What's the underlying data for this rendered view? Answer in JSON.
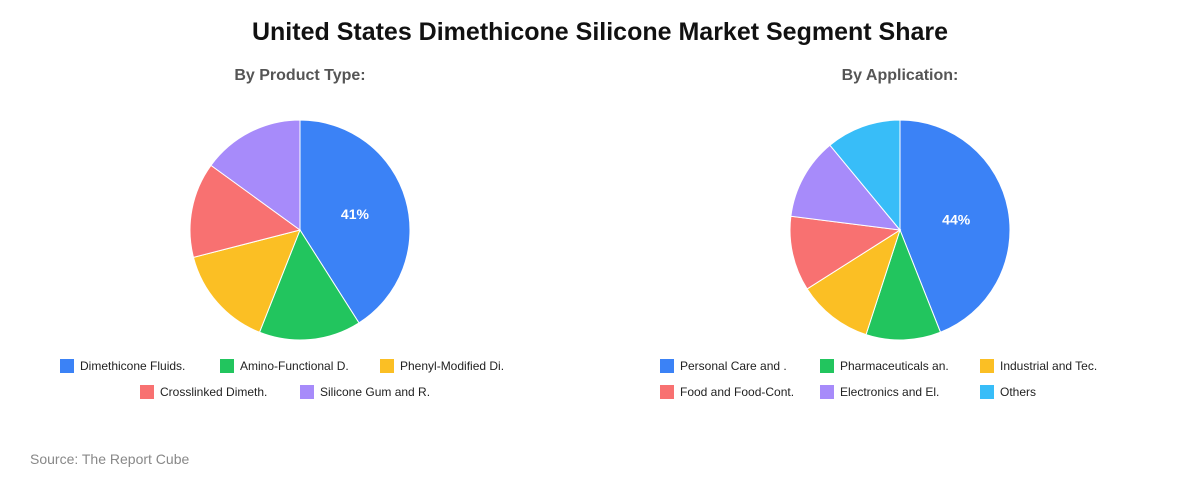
{
  "title": "United States Dimethicone Silicone Market Segment Share",
  "source": "Source: The Report Cube",
  "colors": {
    "blue": "#3b82f6",
    "green": "#22c55e",
    "yellow": "#fbbf24",
    "red": "#f87171",
    "purple": "#a78bfa",
    "sky": "#38bdf8"
  },
  "chart_data": [
    {
      "type": "pie",
      "title": "By Product Type:",
      "categories": [
        "Dimethicone Fluids.",
        "Amino-Functional D.",
        "Phenyl-Modified Di.",
        "Crosslinked Dimeth.",
        "Silicone Gum and R."
      ],
      "values": [
        41,
        15,
        15,
        14,
        15
      ],
      "data_labels": [
        "41%",
        "",
        "",
        "",
        ""
      ],
      "colors": [
        "#3b82f6",
        "#22c55e",
        "#fbbf24",
        "#f87171",
        "#a78bfa"
      ],
      "legend_position": "bottom"
    },
    {
      "type": "pie",
      "title": "By Application:",
      "categories": [
        "Personal Care and .",
        "Pharmaceuticals an.",
        "Industrial and Tec.",
        "Food and Food-Cont.",
        "Electronics and El.",
        "Others"
      ],
      "values": [
        44,
        11,
        11,
        11,
        12,
        11
      ],
      "data_labels": [
        "44%",
        "",
        "",
        "",
        "",
        ""
      ],
      "colors": [
        "#3b82f6",
        "#22c55e",
        "#fbbf24",
        "#f87171",
        "#a78bfa",
        "#38bdf8"
      ],
      "legend_position": "bottom"
    }
  ]
}
